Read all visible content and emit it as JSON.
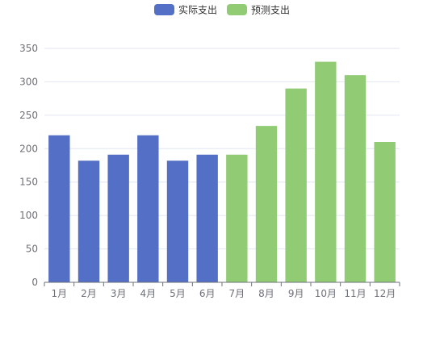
{
  "chart_data": {
    "type": "bar",
    "categories": [
      "1月",
      "2月",
      "3月",
      "4月",
      "5月",
      "6月",
      "7月",
      "8月",
      "9月",
      "10月",
      "11月",
      "12月"
    ],
    "series": [
      {
        "name": "实际支出",
        "color": "#5470c6",
        "values": [
          220,
          182,
          191,
          220,
          182,
          191,
          null,
          null,
          null,
          null,
          null,
          null
        ]
      },
      {
        "name": "预测支出",
        "color": "#91cc75",
        "values": [
          null,
          null,
          null,
          null,
          null,
          null,
          191,
          234,
          290,
          330,
          310,
          210
        ]
      }
    ],
    "ylim": [
      0,
      350
    ],
    "yticks": [
      0,
      50,
      100,
      150,
      200,
      250,
      300,
      350
    ],
    "grid": true,
    "legend": "top-center"
  }
}
